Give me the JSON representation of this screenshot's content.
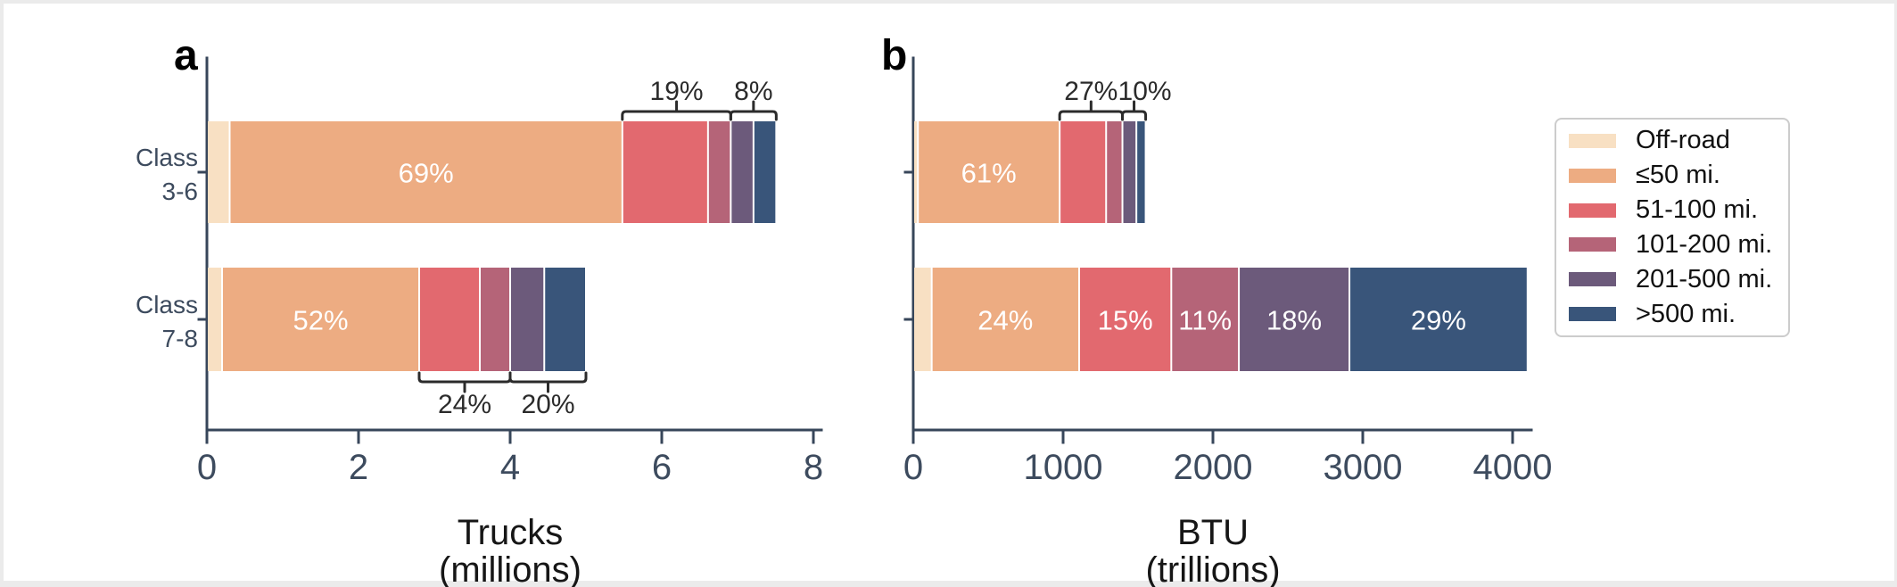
{
  "page": {
    "background_color": "#EBEBEB",
    "figure_background_color": "#FFFFFF"
  },
  "legend": {
    "position": "right",
    "items": [
      {
        "label": "Off-road",
        "color": "#F8E0C3"
      },
      {
        "label": "≤50 mi.",
        "color": "#EDAC82"
      },
      {
        "label": "51-100 mi.",
        "color": "#E2696F"
      },
      {
        "label": "101-200 mi.",
        "color": "#B56478"
      },
      {
        "label": "201-500 mi.",
        "color": "#6C5A7B"
      },
      {
        "label": ">500 mi.",
        "color": "#39557A"
      }
    ]
  },
  "chart_data": [
    {
      "id": "a",
      "panel_label": "a",
      "type": "bar",
      "orientation": "horizontal",
      "stacked": true,
      "grid": false,
      "xlabel": "Trucks\n(millions)",
      "ylabel": "",
      "xlim": [
        0,
        8
      ],
      "xticks": [
        0,
        2,
        4,
        6,
        8
      ],
      "categories": [
        "Class\n3-6",
        "Class\n7-8"
      ],
      "series": [
        {
          "name": "Off-road",
          "color": "#F8E0C3",
          "values": [
            0.3,
            0.2
          ],
          "bar_labels": [
            null,
            null
          ]
        },
        {
          "name": "≤50 mi.",
          "color": "#EDAC82",
          "values": [
            5.18,
            2.6
          ],
          "bar_labels": [
            "69%",
            "52%"
          ]
        },
        {
          "name": "51-100 mi.",
          "color": "#E2696F",
          "values": [
            1.13,
            0.8
          ],
          "bar_labels": [
            null,
            null
          ]
        },
        {
          "name": "101-200 mi.",
          "color": "#B56478",
          "values": [
            0.3,
            0.4
          ],
          "bar_labels": [
            null,
            null
          ]
        },
        {
          "name": "201-500 mi.",
          "color": "#6C5A7B",
          "values": [
            0.3,
            0.45
          ],
          "bar_labels": [
            null,
            null
          ]
        },
        {
          "name": ">500 mi.",
          "color": "#39557A",
          "values": [
            0.3,
            0.55
          ],
          "bar_labels": [
            null,
            null
          ]
        }
      ],
      "annotations": [
        {
          "text": "19%",
          "row": 0,
          "from_series": 2,
          "to_series": 3,
          "side": "above"
        },
        {
          "text": "8%",
          "row": 0,
          "from_series": 4,
          "to_series": 5,
          "side": "above"
        },
        {
          "text": "24%",
          "row": 1,
          "from_series": 2,
          "to_series": 3,
          "side": "below"
        },
        {
          "text": "20%",
          "row": 1,
          "from_series": 4,
          "to_series": 5,
          "side": "below"
        }
      ]
    },
    {
      "id": "b",
      "panel_label": "b",
      "type": "bar",
      "orientation": "horizontal",
      "stacked": true,
      "grid": false,
      "xlabel": "BTU\n(trillions)",
      "ylabel": "",
      "xlim": [
        0,
        4000
      ],
      "xticks": [
        0,
        1000,
        2000,
        3000,
        4000
      ],
      "categories": [
        "",
        ""
      ],
      "series": [
        {
          "name": "Off-road",
          "color": "#F8E0C3",
          "values": [
            31,
            123
          ],
          "bar_labels": [
            null,
            null
          ]
        },
        {
          "name": "≤50 mi.",
          "color": "#EDAC82",
          "values": [
            946,
            984
          ],
          "bar_labels": [
            "61%",
            "24%"
          ]
        },
        {
          "name": "51-100 mi.",
          "color": "#E2696F",
          "values": [
            310,
            615
          ],
          "bar_labels": [
            null,
            "15%"
          ]
        },
        {
          "name": "101-200 mi.",
          "color": "#B56478",
          "values": [
            109,
            451
          ],
          "bar_labels": [
            null,
            "11%"
          ]
        },
        {
          "name": "201-500 mi.",
          "color": "#6C5A7B",
          "values": [
            93,
            738
          ],
          "bar_labels": [
            null,
            "18%"
          ]
        },
        {
          "name": ">500 mi.",
          "color": "#39557A",
          "values": [
            62,
            1189
          ],
          "bar_labels": [
            null,
            "29%"
          ]
        }
      ],
      "annotations": [
        {
          "text": "27%",
          "row": 0,
          "from_series": 2,
          "to_series": 3,
          "side": "above"
        },
        {
          "text": "10%",
          "row": 0,
          "from_series": 4,
          "to_series": 5,
          "side": "above",
          "label_dx": 12
        }
      ]
    }
  ]
}
